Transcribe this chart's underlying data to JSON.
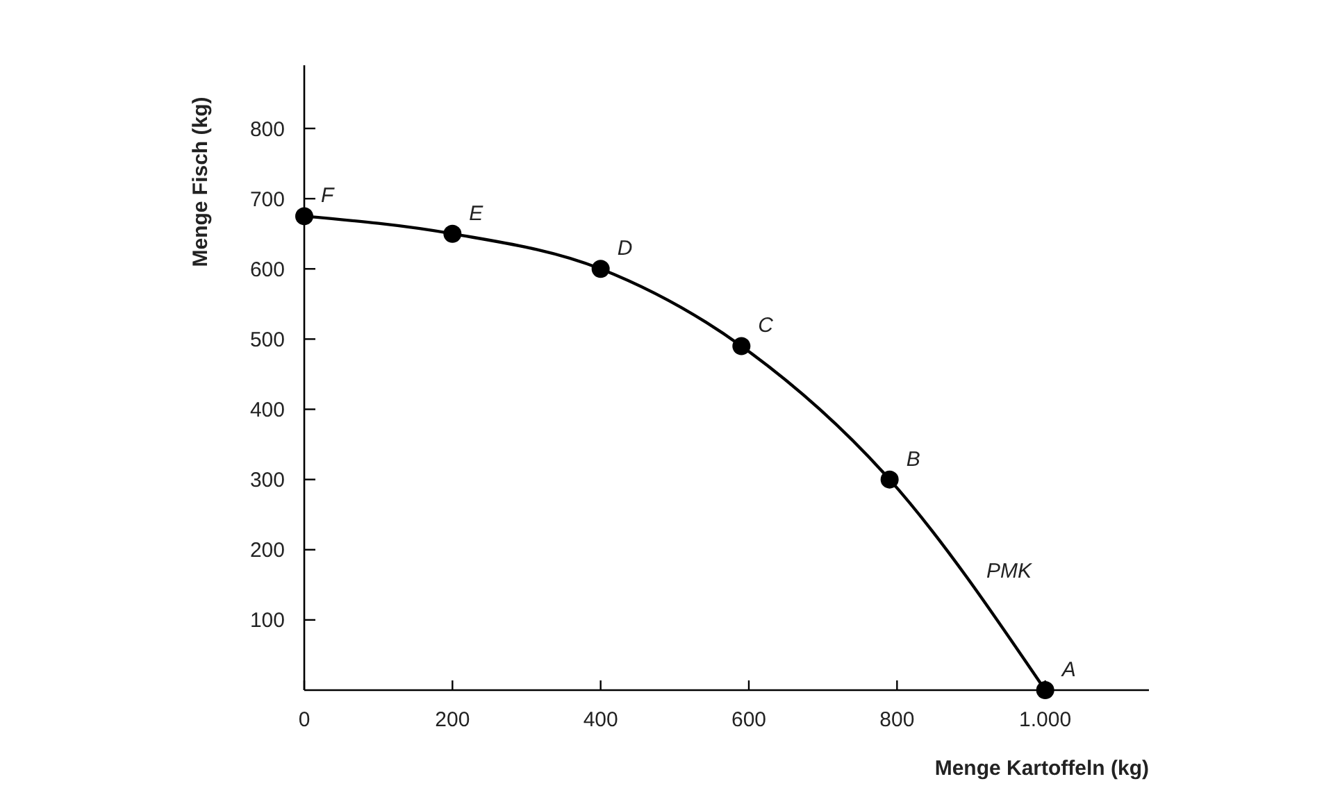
{
  "chart_data": {
    "type": "line",
    "xlabel": "Menge Kartoffeln (kg)",
    "ylabel": "Menge Fisch (kg)",
    "x": [
      0,
      200,
      400,
      590,
      790,
      1000
    ],
    "series": [
      {
        "color": "#000000",
        "values": [
          675,
          650,
          600,
          490,
          300,
          0
        ]
      }
    ],
    "xlim": [
      0,
      1140
    ],
    "xticks": [
      0,
      200,
      400,
      600,
      800,
      {
        "value": 1000,
        "label": "1.000"
      }
    ],
    "ylim": [
      0,
      890
    ],
    "yticks": [
      100,
      200,
      300,
      400,
      500,
      600,
      700,
      800
    ],
    "marker": "circle",
    "line_style": "solid",
    "grid": false,
    "annotations": [
      {
        "text": "A",
        "x": 1000,
        "y": 0
      },
      {
        "text": "B",
        "x": 790,
        "y": 300
      },
      {
        "text": "C",
        "x": 590,
        "y": 490
      },
      {
        "text": "D",
        "x": 400,
        "y": 600
      },
      {
        "text": "E",
        "x": 200,
        "y": 650
      },
      {
        "text": "F",
        "x": 0,
        "y": 675
      },
      "PMK"
    ]
  }
}
